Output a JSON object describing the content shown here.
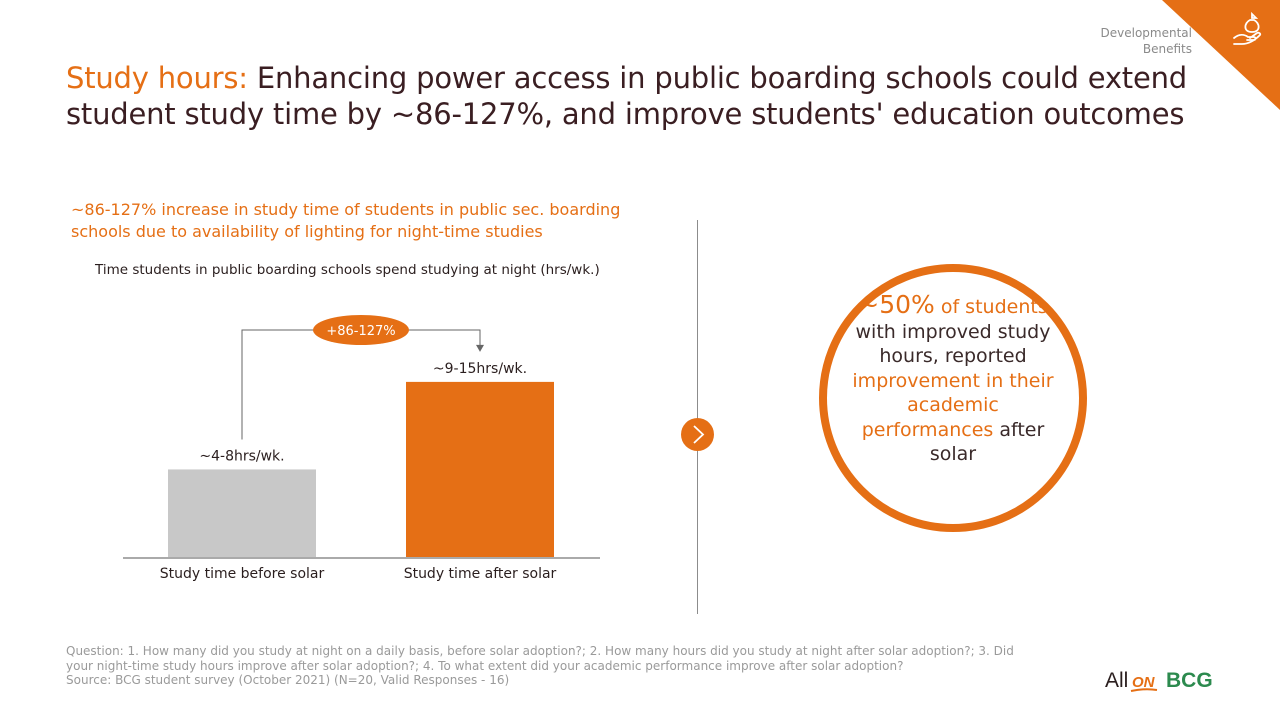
{
  "corner": {
    "label_line1": "Developmental",
    "label_line2": "Benefits",
    "icon": "hand-money-bag-icon",
    "color": "#e56f15"
  },
  "title": {
    "accent": "Study hours:",
    "rest": " Enhancing power access in public boarding schools could extend student study time by ~86-127%, and improve students' education outcomes"
  },
  "left_heading": "~86-127% increase in study time of students in public sec. boarding schools due to availability of lighting for night-time studies",
  "chart_data": {
    "type": "bar",
    "title": "Time students in public boarding schools spend studying at night (hrs/wk.)",
    "categories": [
      "Study time before solar",
      "Study time after solar"
    ],
    "values": [
      6,
      12
    ],
    "ranges": [
      [
        4,
        8
      ],
      [
        9,
        15
      ]
    ],
    "data_labels": [
      "~4-8hrs/wk.",
      "~9-15hrs/wk."
    ],
    "colors": [
      "#c8c8c8",
      "#e56f15"
    ],
    "annotation": "+86-127%",
    "ylim": [
      0,
      13.5
    ],
    "grid": false
  },
  "callout": {
    "big": "~50%",
    "of_students": " of students",
    "line_a": "with improved study hours, reported",
    "line_b": "improvement in their academic performances",
    "line_c": "after solar"
  },
  "footnote": {
    "question": "Question: 1. How many   did you study at night on a daily basis, before solar adoption?; 2. How many hours did you study at night after solar adoption?; 3. Did your night-time study hours improve after solar adoption?; 4. To what extent did your academic performance improve after solar adoption?",
    "source": "Source: BCG student survey (October 2021) (N=20, Valid Responses - 16)"
  },
  "logos": {
    "allon_all": "All",
    "allon_on": "ON",
    "bcg": "BCG",
    "allon_color": "#2a1e1e",
    "on_color": "#e56f15",
    "bcg_color": "#2c8a4e"
  }
}
